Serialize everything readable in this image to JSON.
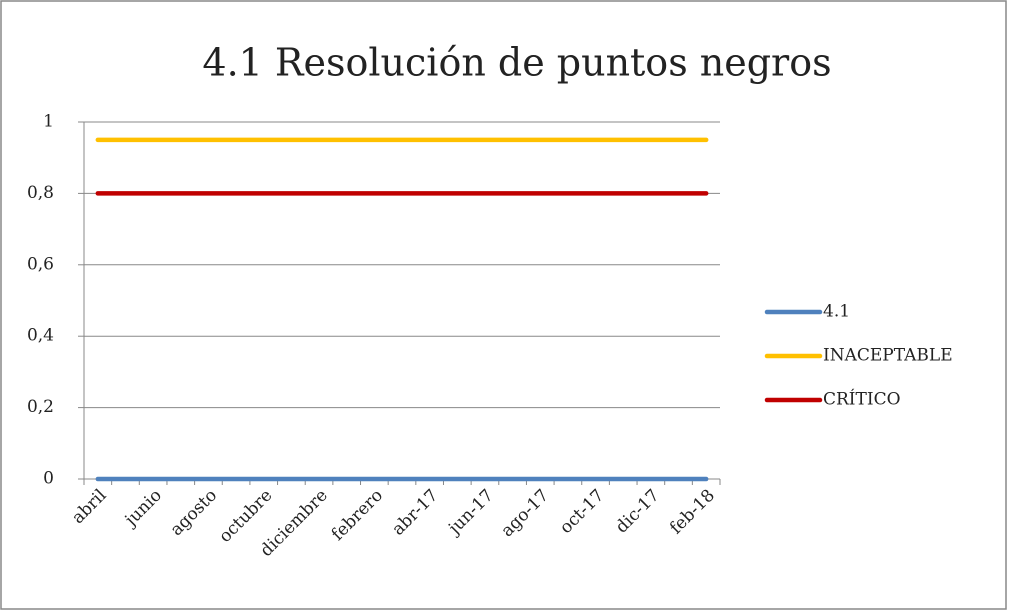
{
  "chart_data": {
    "type": "line",
    "title": "4.1 Resolución de puntos negros",
    "categories": [
      "abril",
      null,
      "junio",
      null,
      "agosto",
      null,
      "octubre",
      null,
      "diciembre",
      null,
      "febrero",
      null,
      "abr-17",
      null,
      "jun-17",
      null,
      "ago-17",
      null,
      "oct-17",
      null,
      "dic-17",
      null,
      "feb-18"
    ],
    "series": [
      {
        "name": "4.1",
        "color": "#4f81bd",
        "values": [
          0,
          0,
          0,
          0,
          0,
          0,
          0,
          0,
          0,
          0,
          0,
          0,
          0,
          0,
          0,
          0,
          0,
          0,
          0,
          0,
          0,
          0,
          0
        ]
      },
      {
        "name": "INACEPTABLE",
        "color": "#ffc000",
        "values": [
          0.95,
          0.95,
          0.95,
          0.95,
          0.95,
          0.95,
          0.95,
          0.95,
          0.95,
          0.95,
          0.95,
          0.95,
          0.95,
          0.95,
          0.95,
          0.95,
          0.95,
          0.95,
          0.95,
          0.95,
          0.95,
          0.95,
          0.95
        ]
      },
      {
        "name": "CRÍTICO",
        "color": "#c00000",
        "values": [
          0.8,
          0.8,
          0.8,
          0.8,
          0.8,
          0.8,
          0.8,
          0.8,
          0.8,
          0.8,
          0.8,
          0.8,
          0.8,
          0.8,
          0.8,
          0.8,
          0.8,
          0.8,
          0.8,
          0.8,
          0.8,
          0.8,
          0.8
        ]
      }
    ],
    "ylim": [
      0,
      1
    ],
    "yticks": [
      0,
      {
        "value": 0.2,
        "label": "0,2"
      },
      {
        "value": 0.4,
        "label": "0,4"
      },
      {
        "value": 0.6,
        "label": "0,6"
      },
      {
        "value": 0.8,
        "label": "0,8"
      },
      1
    ],
    "grid": true,
    "legend": "right"
  }
}
